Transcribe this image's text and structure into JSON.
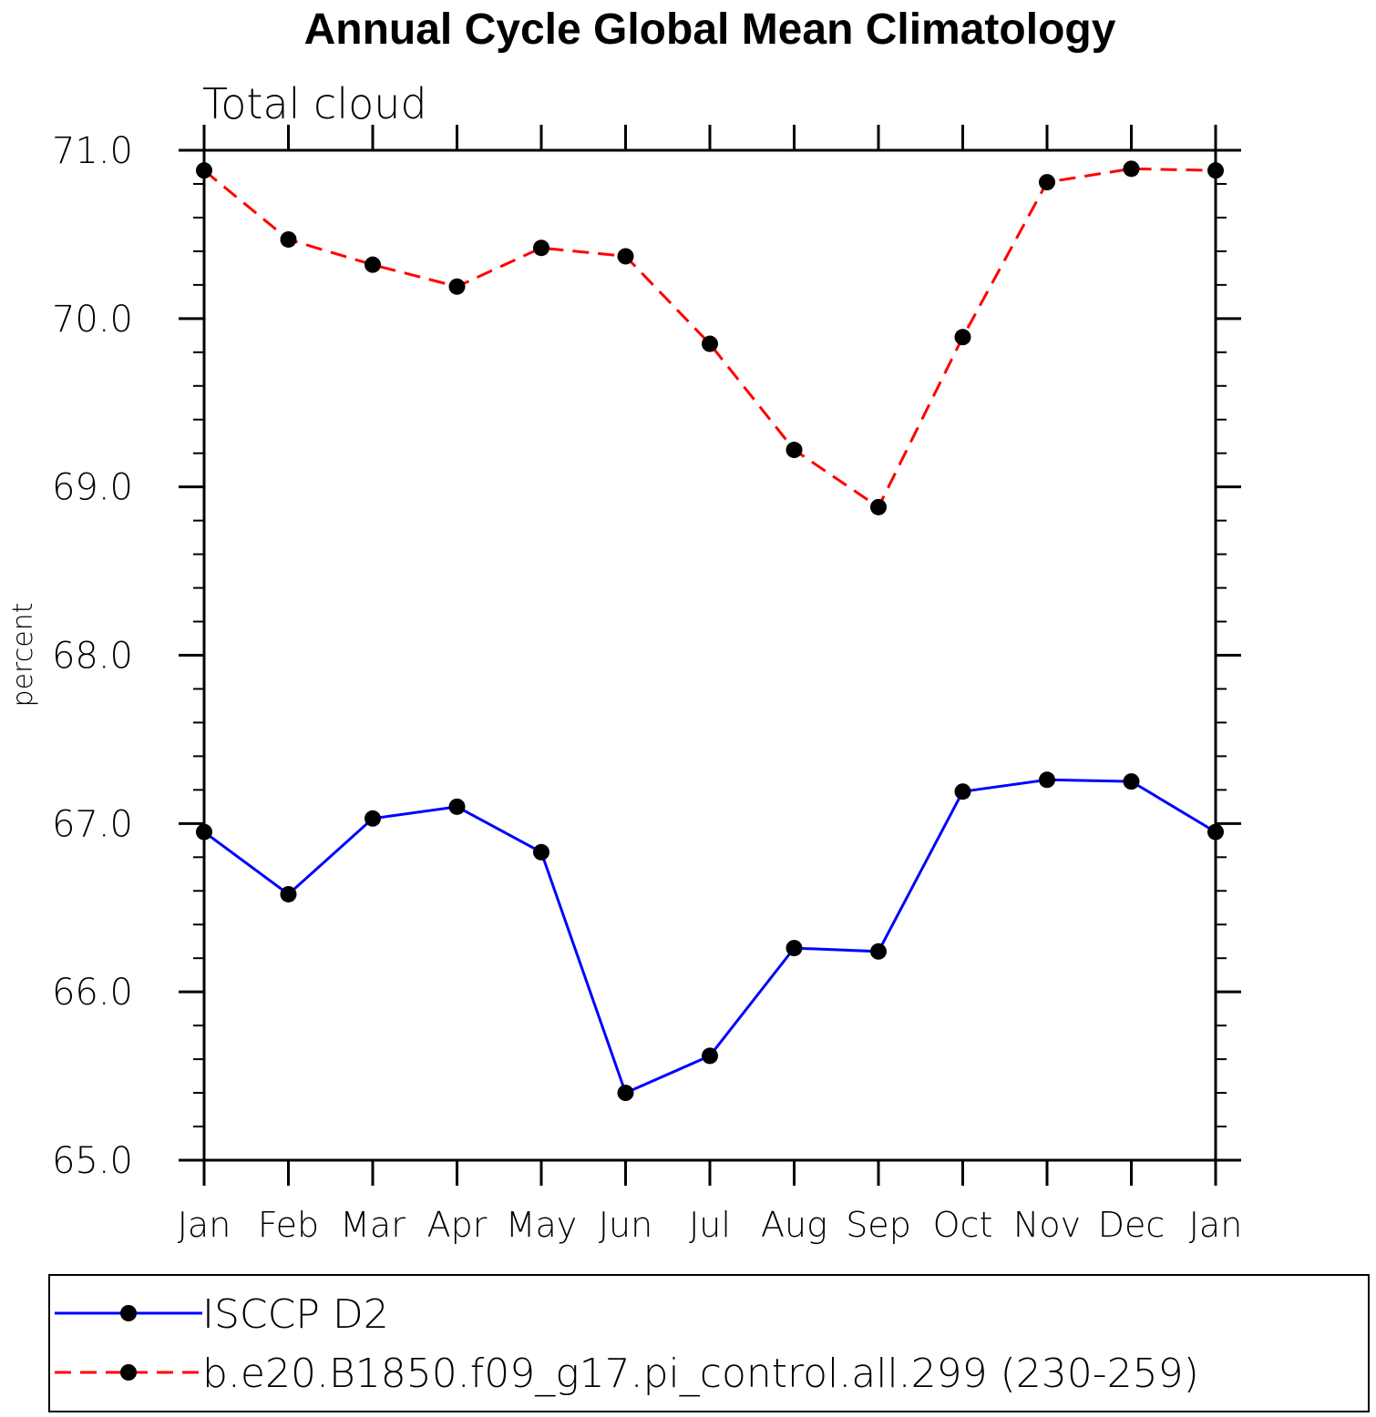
{
  "chart_data": {
    "type": "line",
    "title": "Annual Cycle Global Mean Climatology",
    "subtitle": "Total cloud",
    "xlabel": "",
    "ylabel": "percent",
    "categories": [
      "Jan",
      "Feb",
      "Mar",
      "Apr",
      "May",
      "Jun",
      "Jul",
      "Aug",
      "Sep",
      "Oct",
      "Nov",
      "Dec",
      "Jan"
    ],
    "ylim": [
      65.0,
      71.0
    ],
    "yticks": [
      "65.0",
      "66.0",
      "67.0",
      "68.0",
      "69.0",
      "70.0",
      "71.0"
    ],
    "grid": false,
    "legend_position": "bottom",
    "series": [
      {
        "name": "ISCCP D2",
        "color": "#0000ff",
        "line_style": "solid",
        "marker": "filled-circle",
        "values": [
          66.95,
          66.58,
          67.03,
          67.1,
          66.83,
          65.4,
          65.62,
          66.26,
          66.24,
          67.19,
          67.26,
          67.25,
          66.95
        ]
      },
      {
        "name": "b.e20.B1850.f09_g17.pi_control.all.299 (230-259)",
        "color": "#ff0000",
        "line_style": "dashed",
        "marker": "filled-circle",
        "values": [
          70.88,
          70.47,
          70.32,
          70.19,
          70.42,
          70.37,
          69.85,
          69.22,
          68.88,
          69.89,
          70.81,
          70.89,
          70.88
        ]
      }
    ]
  }
}
